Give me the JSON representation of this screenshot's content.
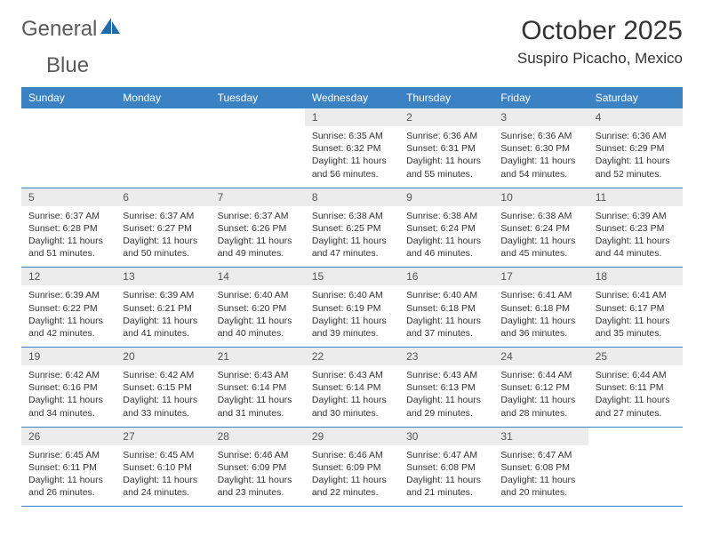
{
  "brand": {
    "name_a": "General",
    "name_b": "Blue"
  },
  "title": "October 2025",
  "location": "Suspiro Picacho, Mexico",
  "colors": {
    "header_bg": "#3b82c4",
    "daynum_bg": "#ececec",
    "border": "#3b82c4",
    "text": "#333333",
    "logo_text": "#5a5a5a",
    "logo_accent": "#1f6bb0"
  },
  "days_of_week": [
    "Sunday",
    "Monday",
    "Tuesday",
    "Wednesday",
    "Thursday",
    "Friday",
    "Saturday"
  ],
  "weeks": [
    [
      {
        "n": "",
        "lines": []
      },
      {
        "n": "",
        "lines": []
      },
      {
        "n": "",
        "lines": []
      },
      {
        "n": "1",
        "lines": [
          "Sunrise: 6:35 AM",
          "Sunset: 6:32 PM",
          "Daylight: 11 hours and 56 minutes."
        ]
      },
      {
        "n": "2",
        "lines": [
          "Sunrise: 6:36 AM",
          "Sunset: 6:31 PM",
          "Daylight: 11 hours and 55 minutes."
        ]
      },
      {
        "n": "3",
        "lines": [
          "Sunrise: 6:36 AM",
          "Sunset: 6:30 PM",
          "Daylight: 11 hours and 54 minutes."
        ]
      },
      {
        "n": "4",
        "lines": [
          "Sunrise: 6:36 AM",
          "Sunset: 6:29 PM",
          "Daylight: 11 hours and 52 minutes."
        ]
      }
    ],
    [
      {
        "n": "5",
        "lines": [
          "Sunrise: 6:37 AM",
          "Sunset: 6:28 PM",
          "Daylight: 11 hours and 51 minutes."
        ]
      },
      {
        "n": "6",
        "lines": [
          "Sunrise: 6:37 AM",
          "Sunset: 6:27 PM",
          "Daylight: 11 hours and 50 minutes."
        ]
      },
      {
        "n": "7",
        "lines": [
          "Sunrise: 6:37 AM",
          "Sunset: 6:26 PM",
          "Daylight: 11 hours and 49 minutes."
        ]
      },
      {
        "n": "8",
        "lines": [
          "Sunrise: 6:38 AM",
          "Sunset: 6:25 PM",
          "Daylight: 11 hours and 47 minutes."
        ]
      },
      {
        "n": "9",
        "lines": [
          "Sunrise: 6:38 AM",
          "Sunset: 6:24 PM",
          "Daylight: 11 hours and 46 minutes."
        ]
      },
      {
        "n": "10",
        "lines": [
          "Sunrise: 6:38 AM",
          "Sunset: 6:24 PM",
          "Daylight: 11 hours and 45 minutes."
        ]
      },
      {
        "n": "11",
        "lines": [
          "Sunrise: 6:39 AM",
          "Sunset: 6:23 PM",
          "Daylight: 11 hours and 44 minutes."
        ]
      }
    ],
    [
      {
        "n": "12",
        "lines": [
          "Sunrise: 6:39 AM",
          "Sunset: 6:22 PM",
          "Daylight: 11 hours and 42 minutes."
        ]
      },
      {
        "n": "13",
        "lines": [
          "Sunrise: 6:39 AM",
          "Sunset: 6:21 PM",
          "Daylight: 11 hours and 41 minutes."
        ]
      },
      {
        "n": "14",
        "lines": [
          "Sunrise: 6:40 AM",
          "Sunset: 6:20 PM",
          "Daylight: 11 hours and 40 minutes."
        ]
      },
      {
        "n": "15",
        "lines": [
          "Sunrise: 6:40 AM",
          "Sunset: 6:19 PM",
          "Daylight: 11 hours and 39 minutes."
        ]
      },
      {
        "n": "16",
        "lines": [
          "Sunrise: 6:40 AM",
          "Sunset: 6:18 PM",
          "Daylight: 11 hours and 37 minutes."
        ]
      },
      {
        "n": "17",
        "lines": [
          "Sunrise: 6:41 AM",
          "Sunset: 6:18 PM",
          "Daylight: 11 hours and 36 minutes."
        ]
      },
      {
        "n": "18",
        "lines": [
          "Sunrise: 6:41 AM",
          "Sunset: 6:17 PM",
          "Daylight: 11 hours and 35 minutes."
        ]
      }
    ],
    [
      {
        "n": "19",
        "lines": [
          "Sunrise: 6:42 AM",
          "Sunset: 6:16 PM",
          "Daylight: 11 hours and 34 minutes."
        ]
      },
      {
        "n": "20",
        "lines": [
          "Sunrise: 6:42 AM",
          "Sunset: 6:15 PM",
          "Daylight: 11 hours and 33 minutes."
        ]
      },
      {
        "n": "21",
        "lines": [
          "Sunrise: 6:43 AM",
          "Sunset: 6:14 PM",
          "Daylight: 11 hours and 31 minutes."
        ]
      },
      {
        "n": "22",
        "lines": [
          "Sunrise: 6:43 AM",
          "Sunset: 6:14 PM",
          "Daylight: 11 hours and 30 minutes."
        ]
      },
      {
        "n": "23",
        "lines": [
          "Sunrise: 6:43 AM",
          "Sunset: 6:13 PM",
          "Daylight: 11 hours and 29 minutes."
        ]
      },
      {
        "n": "24",
        "lines": [
          "Sunrise: 6:44 AM",
          "Sunset: 6:12 PM",
          "Daylight: 11 hours and 28 minutes."
        ]
      },
      {
        "n": "25",
        "lines": [
          "Sunrise: 6:44 AM",
          "Sunset: 6:11 PM",
          "Daylight: 11 hours and 27 minutes."
        ]
      }
    ],
    [
      {
        "n": "26",
        "lines": [
          "Sunrise: 6:45 AM",
          "Sunset: 6:11 PM",
          "Daylight: 11 hours and 26 minutes."
        ]
      },
      {
        "n": "27",
        "lines": [
          "Sunrise: 6:45 AM",
          "Sunset: 6:10 PM",
          "Daylight: 11 hours and 24 minutes."
        ]
      },
      {
        "n": "28",
        "lines": [
          "Sunrise: 6:46 AM",
          "Sunset: 6:09 PM",
          "Daylight: 11 hours and 23 minutes."
        ]
      },
      {
        "n": "29",
        "lines": [
          "Sunrise: 6:46 AM",
          "Sunset: 6:09 PM",
          "Daylight: 11 hours and 22 minutes."
        ]
      },
      {
        "n": "30",
        "lines": [
          "Sunrise: 6:47 AM",
          "Sunset: 6:08 PM",
          "Daylight: 11 hours and 21 minutes."
        ]
      },
      {
        "n": "31",
        "lines": [
          "Sunrise: 6:47 AM",
          "Sunset: 6:08 PM",
          "Daylight: 11 hours and 20 minutes."
        ]
      },
      {
        "n": "",
        "lines": []
      }
    ]
  ]
}
